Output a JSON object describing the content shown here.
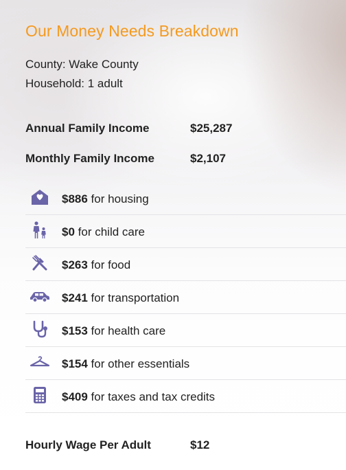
{
  "title": "Our Money Needs Breakdown",
  "county": "County: Wake County",
  "household": "Household: 1 adult",
  "income": {
    "annual_label": "Annual Family Income",
    "annual_value": "$25,287",
    "monthly_label": "Monthly Family Income",
    "monthly_value": "$2,107"
  },
  "items": [
    {
      "icon": "house-icon",
      "amount": "$886",
      "label": " for housing"
    },
    {
      "icon": "child-care-icon",
      "amount": "$0",
      "label": " for child care"
    },
    {
      "icon": "fork-knife-icon",
      "amount": "$263",
      "label": " for food"
    },
    {
      "icon": "car-icon",
      "amount": "$241",
      "label": " for transportation"
    },
    {
      "icon": "stethoscope-icon",
      "amount": "$153",
      "label": " for health care"
    },
    {
      "icon": "hanger-icon",
      "amount": "$154",
      "label": " for other essentials"
    },
    {
      "icon": "calculator-icon",
      "amount": "$409",
      "label": " for taxes and tax credits"
    }
  ],
  "wage": {
    "label": "Hourly Wage Per Adult",
    "value": "$12"
  },
  "colors": {
    "title": "#f49a1f",
    "icon": "#6a64a8"
  }
}
